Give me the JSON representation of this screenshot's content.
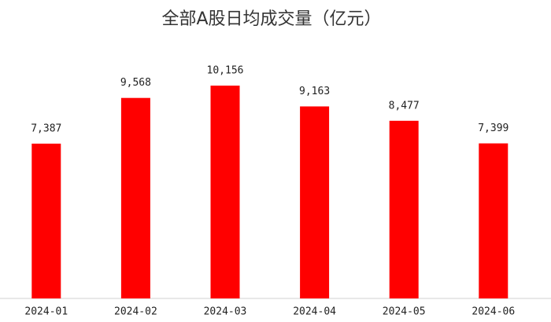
{
  "chart_data": {
    "type": "bar",
    "title": "全部A股日均成交量（亿元）",
    "categories": [
      "2024-01",
      "2024-02",
      "2024-03",
      "2024-04",
      "2024-05",
      "2024-06"
    ],
    "values": [
      7387,
      9568,
      10156,
      9163,
      8477,
      7399
    ],
    "value_labels": [
      "7,387",
      "9,568",
      "10,156",
      "9,163",
      "8,477",
      "7,399"
    ],
    "color": "#ff0000"
  }
}
